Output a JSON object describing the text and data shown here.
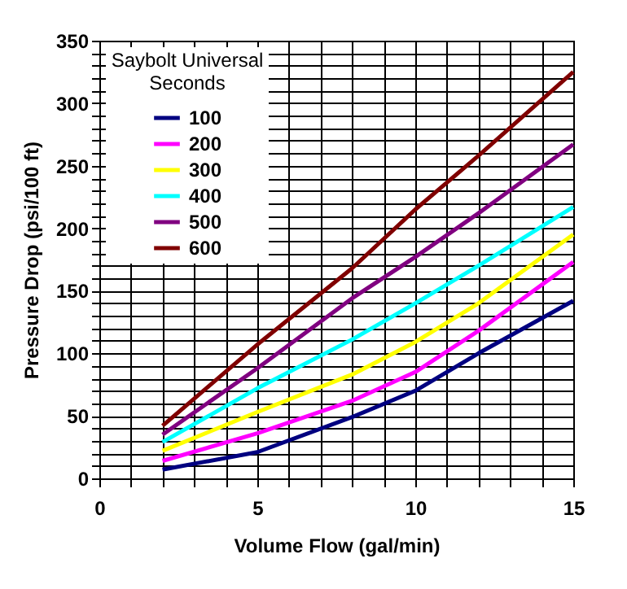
{
  "chart_data": {
    "type": "line",
    "xlabel": "Volume Flow (gal/min)",
    "ylabel": "Pressure Drop (psi/100 ft)",
    "legend_title": "Saybolt Universal Seconds",
    "legend": "top left",
    "grid": true,
    "line_style": "solid",
    "marker": "none",
    "x": [
      2,
      5,
      8,
      10,
      12,
      15
    ],
    "series": [
      {
        "name": "100",
        "color": "#000080",
        "values": [
          7,
          21,
          49,
          70,
          100,
          142
        ]
      },
      {
        "name": "200",
        "color": "#ff00ff",
        "values": [
          14,
          36,
          62,
          85,
          118,
          173
        ]
      },
      {
        "name": "300",
        "color": "#ffff00",
        "values": [
          22,
          53,
          83,
          109,
          140,
          195
        ]
      },
      {
        "name": "400",
        "color": "#00ffff",
        "values": [
          29,
          72,
          111,
          140,
          170,
          217
        ]
      },
      {
        "name": "500",
        "color": "#800080",
        "values": [
          35,
          88,
          144,
          177,
          212,
          267
        ]
      },
      {
        "name": "600",
        "color": "#800000",
        "values": [
          42,
          107,
          168,
          215,
          258,
          325
        ]
      }
    ],
    "xlim": [
      0,
      15
    ],
    "xticks": [
      0,
      {
        "value": 1,
        "label": null
      },
      {
        "value": 2,
        "label": null
      },
      {
        "value": 3,
        "label": null
      },
      {
        "value": 4,
        "label": null
      },
      5,
      {
        "value": 6,
        "label": null
      },
      {
        "value": 7,
        "label": null
      },
      {
        "value": 8,
        "label": null
      },
      {
        "value": 9,
        "label": null
      },
      10,
      {
        "value": 11,
        "label": null
      },
      {
        "value": 12,
        "label": null
      },
      {
        "value": 13,
        "label": null
      },
      {
        "value": 14,
        "label": null
      },
      15
    ],
    "ylim": [
      0,
      350
    ],
    "yticks": [
      0,
      {
        "value": 10,
        "label": null
      },
      {
        "value": 20,
        "label": null
      },
      {
        "value": 30,
        "label": null
      },
      {
        "value": 40,
        "label": null
      },
      50,
      {
        "value": 60,
        "label": null
      },
      {
        "value": 70,
        "label": null
      },
      {
        "value": 80,
        "label": null
      },
      {
        "value": 90,
        "label": null
      },
      100,
      {
        "value": 110,
        "label": null
      },
      {
        "value": 120,
        "label": null
      },
      {
        "value": 130,
        "label": null
      },
      {
        "value": 140,
        "label": null
      },
      150,
      {
        "value": 160,
        "label": null
      },
      {
        "value": 170,
        "label": null
      },
      {
        "value": 180,
        "label": null
      },
      {
        "value": 190,
        "label": null
      },
      200,
      {
        "value": 210,
        "label": null
      },
      {
        "value": 220,
        "label": null
      },
      {
        "value": 230,
        "label": null
      },
      {
        "value": 240,
        "label": null
      },
      250,
      {
        "value": 260,
        "label": null
      },
      {
        "value": 270,
        "label": null
      },
      {
        "value": 280,
        "label": null
      },
      {
        "value": 290,
        "label": null
      },
      300,
      {
        "value": 310,
        "label": null
      },
      {
        "value": 320,
        "label": null
      },
      {
        "value": 330,
        "label": null
      },
      {
        "value": 340,
        "label": null
      },
      350
    ]
  }
}
